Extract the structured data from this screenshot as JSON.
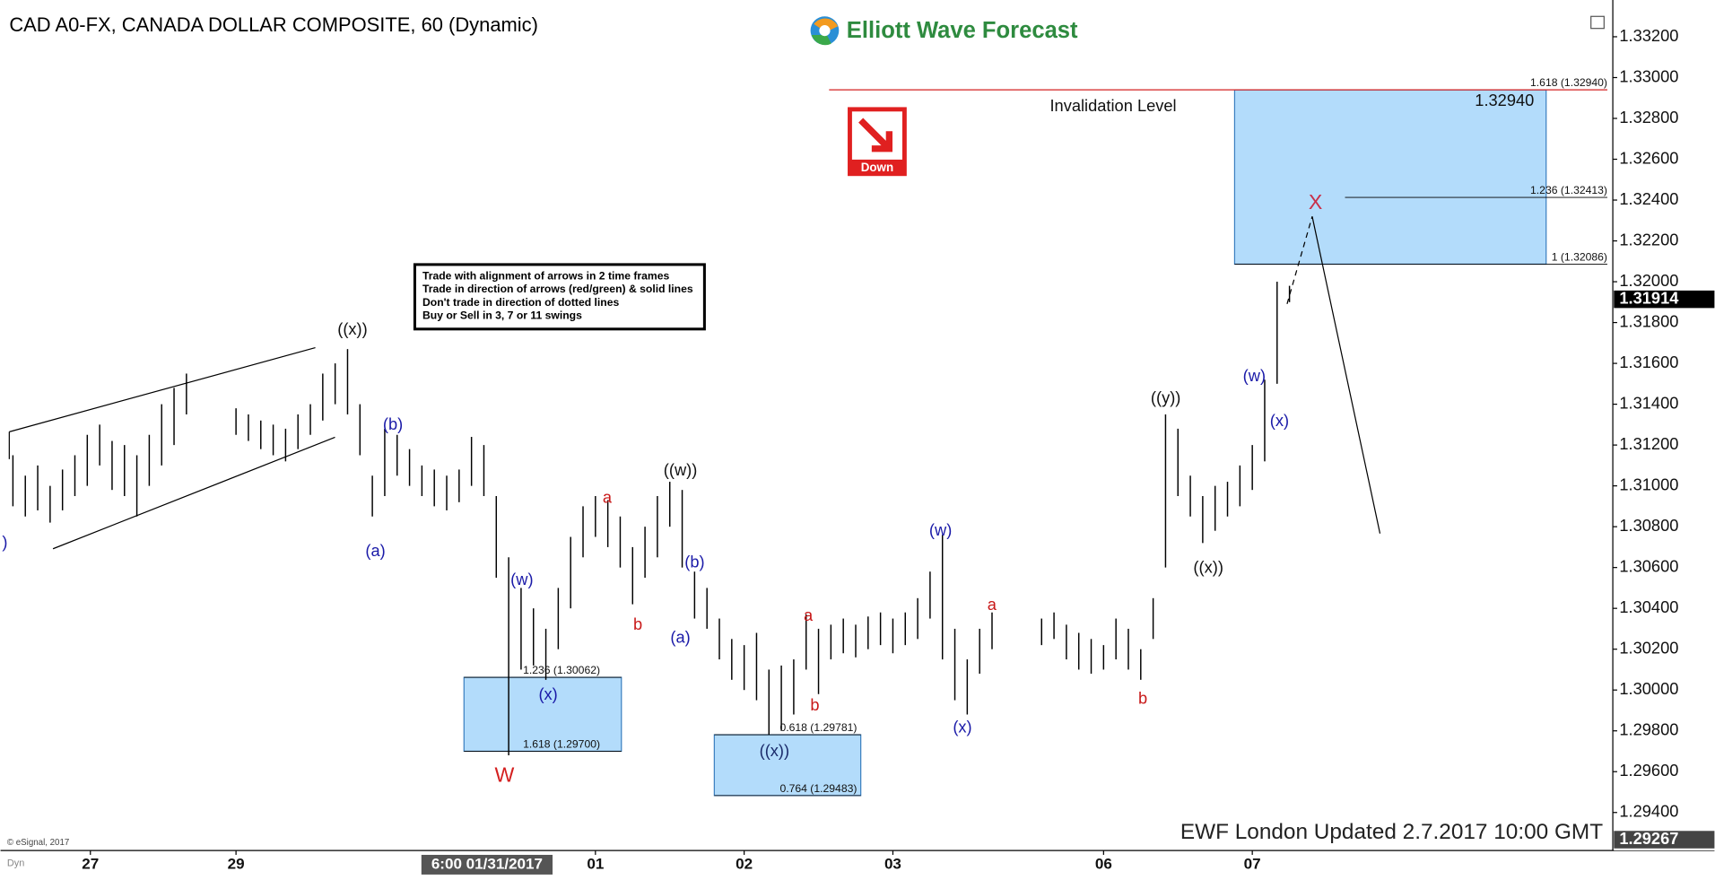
{
  "chart_data": {
    "type": "ohlc",
    "title": "CAD A0-FX, CANADA DOLLAR COMPOSITE, 60 (Dynamic)",
    "brand": "Elliott Wave Forecast",
    "signal": "Down",
    "rules": [
      "Trade with alignment of arrows in 2 time frames",
      "Trade in direction of arrows (red/green) & solid lines",
      "Don't trade in direction of dotted lines",
      "Buy or Sell in 3, 7 or 11 swings"
    ],
    "footer": "EWF London Updated 2.7.2017 10:00 GMT",
    "copyright": "© eSignal, 2017",
    "corner_label": "Dyn",
    "color": "#000000",
    "xlim": [
      0,
      260
    ],
    "ylim": [
      1.2923,
      1.3338
    ],
    "xticks": [
      {
        "value": 14.5,
        "label": "27"
      },
      {
        "value": 38,
        "label": "29"
      },
      {
        "value": 96,
        "label": "01"
      },
      {
        "value": 120,
        "label": "02"
      },
      {
        "value": 144,
        "label": "03"
      },
      {
        "value": 178,
        "label": "06"
      },
      {
        "value": 202,
        "label": "07"
      }
    ],
    "x_cursor": {
      "value": 78.5,
      "label": "6:00 01/31/2017"
    },
    "yticks": [
      {
        "value": 1.294,
        "label": "1.29400"
      },
      {
        "value": 1.296,
        "label": "1.29600"
      },
      {
        "value": 1.298,
        "label": "1.29800"
      },
      {
        "value": 1.3,
        "label": "1.30000"
      },
      {
        "value": 1.302,
        "label": "1.30200"
      },
      {
        "value": 1.304,
        "label": "1.30400"
      },
      {
        "value": 1.306,
        "label": "1.30600"
      },
      {
        "value": 1.308,
        "label": "1.30800"
      },
      {
        "value": 1.31,
        "label": "1.31000"
      },
      {
        "value": 1.312,
        "label": "1.31200"
      },
      {
        "value": 1.314,
        "label": "1.31400"
      },
      {
        "value": 1.316,
        "label": "1.31600"
      },
      {
        "value": 1.318,
        "label": "1.31800"
      },
      {
        "value": 1.32,
        "label": "1.32000"
      },
      {
        "value": 1.322,
        "label": "1.32200"
      },
      {
        "value": 1.324,
        "label": "1.32400"
      },
      {
        "value": 1.326,
        "label": "1.32600"
      },
      {
        "value": 1.328,
        "label": "1.32800"
      },
      {
        "value": 1.33,
        "label": "1.33000"
      },
      {
        "value": 1.332,
        "label": "1.33200"
      }
    ],
    "last_price": 1.31914,
    "low_price": 1.29267,
    "x": [
      2,
      4,
      6,
      8,
      10,
      12,
      14,
      16,
      18,
      20,
      22,
      24,
      26,
      28,
      30,
      38,
      40,
      42,
      44,
      46,
      48,
      50,
      52,
      54,
      56,
      58,
      60,
      62,
      64,
      66,
      68,
      70,
      72,
      74,
      76,
      78,
      80,
      82,
      84,
      86,
      88,
      90,
      92,
      94,
      96,
      98,
      100,
      102,
      104,
      106,
      108,
      110,
      112,
      114,
      116,
      118,
      120,
      122,
      124,
      126,
      128,
      130,
      132,
      134,
      136,
      138,
      140,
      142,
      144,
      146,
      148,
      150,
      152,
      154,
      156,
      158,
      160,
      168,
      170,
      172,
      174,
      176,
      178,
      180,
      182,
      184,
      186,
      188,
      190,
      192,
      194,
      196,
      198,
      200,
      202,
      204,
      206,
      208
    ],
    "high": [
      1.3115,
      1.3105,
      1.311,
      1.31,
      1.3108,
      1.3115,
      1.3125,
      1.313,
      1.3122,
      1.312,
      1.3115,
      1.3125,
      1.314,
      1.3148,
      1.3155,
      1.3138,
      1.3135,
      1.3132,
      1.313,
      1.3128,
      1.3135,
      1.314,
      1.3155,
      1.316,
      1.3167,
      1.314,
      1.3105,
      1.3128,
      1.3125,
      1.3118,
      1.311,
      1.3108,
      1.3105,
      1.3108,
      1.3124,
      1.312,
      1.3095,
      1.3065,
      1.305,
      1.304,
      1.303,
      1.305,
      1.3075,
      1.309,
      1.3095,
      1.3093,
      1.3085,
      1.307,
      1.308,
      1.3095,
      1.3102,
      1.3098,
      1.3058,
      1.305,
      1.3035,
      1.3025,
      1.3022,
      1.3028,
      1.301,
      1.3012,
      1.3015,
      1.3037,
      1.303,
      1.3032,
      1.3035,
      1.3032,
      1.3036,
      1.3038,
      1.3035,
      1.3038,
      1.3045,
      1.3058,
      1.3076,
      1.303,
      1.3015,
      1.303,
      1.3038,
      1.3035,
      1.3038,
      1.3032,
      1.3028,
      1.3025,
      1.3022,
      1.3035,
      1.303,
      1.302,
      1.3045,
      1.3135,
      1.3128,
      1.3105,
      1.3095,
      1.31,
      1.3102,
      1.311,
      1.312,
      1.3152,
      1.32,
      1.3198
    ],
    "low": [
      1.309,
      1.3085,
      1.3088,
      1.3082,
      1.3088,
      1.3095,
      1.31,
      1.311,
      1.3098,
      1.3095,
      1.3085,
      1.31,
      1.311,
      1.312,
      1.3135,
      1.3125,
      1.3122,
      1.3118,
      1.3115,
      1.3112,
      1.3118,
      1.3125,
      1.3132,
      1.314,
      1.3135,
      1.3115,
      1.3085,
      1.3095,
      1.3105,
      1.31,
      1.3095,
      1.309,
      1.3088,
      1.3092,
      1.31,
      1.3095,
      1.3055,
      1.2968,
      1.301,
      1.3012,
      1.3005,
      1.302,
      1.304,
      1.3065,
      1.3075,
      1.307,
      1.306,
      1.3042,
      1.3055,
      1.3065,
      1.308,
      1.306,
      1.3035,
      1.303,
      1.3015,
      1.3005,
      1.3,
      1.2995,
      1.2978,
      1.298,
      1.2988,
      1.301,
      1.2998,
      1.3015,
      1.3018,
      1.3016,
      1.302,
      1.3022,
      1.3018,
      1.3022,
      1.3025,
      1.3035,
      1.3015,
      1.2995,
      1.2988,
      1.3008,
      1.302,
      1.3022,
      1.3025,
      1.3015,
      1.301,
      1.3008,
      1.301,
      1.3015,
      1.301,
      1.3005,
      1.3025,
      1.306,
      1.3095,
      1.3085,
      1.3072,
      1.3078,
      1.3085,
      1.309,
      1.3098,
      1.3112,
      1.315,
      1.319
    ],
    "zones": [
      {
        "color": "#b3dcfb",
        "levels": [
          {
            "value": 1.30062,
            "label": "1.236 (1.30062)"
          },
          {
            "value": 1.297,
            "label": "1.618 (1.29700)"
          }
        ]
      },
      {
        "color": "#b3dcfb",
        "levels": [
          {
            "value": 1.29781,
            "label": "0.618 (1.29781)"
          },
          {
            "value": 1.29483,
            "label": "0.764 (1.29483)"
          }
        ]
      },
      {
        "color": "#b3dcfb",
        "levels": [
          {
            "value": 1.3294,
            "label": "1.618 (1.32940)"
          },
          {
            "value": 1.32413,
            "label": "1.236 (1.32413)"
          },
          {
            "value": 1.32086,
            "label": "1 (1.32086)"
          }
        ]
      }
    ],
    "invalidation_level": {
      "text": "Invalidation Level",
      "value": 1.3294,
      "value_label": "1.32940",
      "color": "#d42020"
    },
    "wave_labels": [
      {
        "text": ")",
        "color": "#1a1aa8"
      },
      {
        "text": "((x))",
        "color": "#111111"
      },
      {
        "text": "(b)",
        "color": "#1a1aa8"
      },
      {
        "text": "(a)",
        "color": "#1a1aa8"
      },
      {
        "text": "(w)",
        "color": "#1a1aa8"
      },
      {
        "text": "W",
        "color": "#d42020"
      },
      {
        "text": "(x)",
        "color": "#1a1aa8"
      },
      {
        "text": "a",
        "color": "#c81818"
      },
      {
        "text": "b",
        "color": "#c81818"
      },
      {
        "text": "((w))",
        "color": "#111111"
      },
      {
        "text": "(b)",
        "color": "#1a1aa8"
      },
      {
        "text": "(a)",
        "color": "#1a1aa8"
      },
      {
        "text": "a",
        "color": "#c81818"
      },
      {
        "text": "b",
        "color": "#c81818"
      },
      {
        "text": "((x))",
        "color": "#1a2a6a"
      },
      {
        "text": "(w)",
        "color": "#1a1aa8"
      },
      {
        "text": "(x)",
        "color": "#1a1aa8"
      },
      {
        "text": "a",
        "color": "#c81818"
      },
      {
        "text": "b",
        "color": "#c81818"
      },
      {
        "text": "((y))",
        "color": "#111111"
      },
      {
        "text": "((x))",
        "color": "#111111"
      },
      {
        "text": "(w)",
        "color": "#1a1aa8"
      },
      {
        "text": "(x)",
        "color": "#1a1aa8"
      },
      {
        "text": "X",
        "color": "#c8304a"
      }
    ]
  }
}
